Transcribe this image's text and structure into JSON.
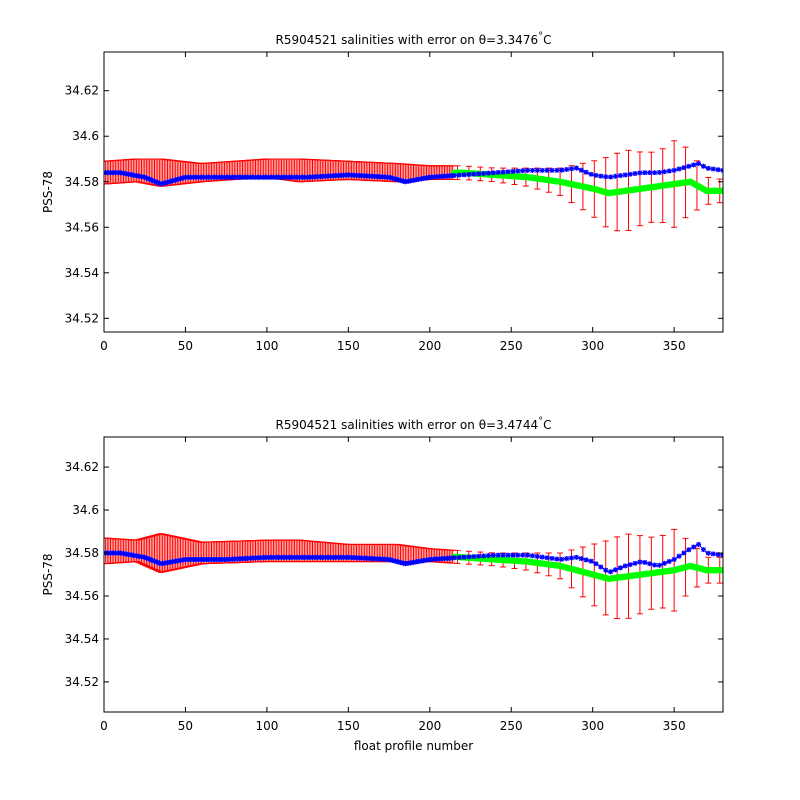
{
  "figure": {
    "background": "#ffffff",
    "colors": {
      "error_bars": "#ff0000",
      "mapped": "#00ff00",
      "float": "#0000ff",
      "axes": "#000000"
    }
  },
  "chart_data": [
    {
      "type": "scatter",
      "title": "R5904521 salinities with error on θ=3.3476°C",
      "title_parts": {
        "prefix": "R5904521 salinities with error on θ=3.3476",
        "degree": "°",
        "unit": "C"
      },
      "xlabel": "",
      "ylabel": "PSS-78",
      "xlim": [
        0,
        380
      ],
      "ylim": [
        34.514,
        34.637
      ],
      "xticks": [
        0,
        50,
        100,
        150,
        200,
        250,
        300,
        350
      ],
      "yticks": [
        34.52,
        34.54,
        34.56,
        34.58,
        34.6,
        34.62
      ],
      "ytick_labels": [
        "34.52",
        "34.54",
        "34.56",
        "34.58",
        "34.6",
        "34.62"
      ],
      "grid": false,
      "series": [
        {
          "role": "mapped salinity with error bars",
          "x": [
            0,
            20,
            35,
            60,
            100,
            120,
            150,
            180,
            200,
            220,
            240,
            260,
            280,
            300,
            310,
            320,
            330,
            340,
            350,
            360,
            370,
            380
          ],
          "y": [
            34.584,
            34.585,
            34.584,
            34.584,
            34.586,
            34.585,
            34.585,
            34.584,
            34.584,
            34.584,
            34.583,
            34.582,
            34.58,
            34.577,
            34.575,
            34.576,
            34.577,
            34.578,
            34.579,
            34.58,
            34.576,
            34.576
          ],
          "err": [
            0.005,
            0.005,
            0.006,
            0.004,
            0.004,
            0.005,
            0.004,
            0.004,
            0.003,
            0.003,
            0.003,
            0.004,
            0.006,
            0.012,
            0.016,
            0.018,
            0.016,
            0.015,
            0.019,
            0.014,
            0.006,
            0.005
          ]
        },
        {
          "role": "float salinity",
          "x": [
            0,
            10,
            25,
            35,
            50,
            75,
            100,
            125,
            150,
            175,
            185,
            200,
            220,
            240,
            260,
            280,
            290,
            300,
            310,
            320,
            330,
            340,
            350,
            360,
            365,
            370,
            380
          ],
          "y": [
            34.584,
            34.584,
            34.582,
            34.579,
            34.582,
            34.582,
            34.582,
            34.582,
            34.583,
            34.582,
            34.58,
            34.582,
            34.583,
            34.584,
            34.585,
            34.585,
            34.586,
            34.583,
            34.582,
            34.583,
            34.584,
            34.584,
            34.585,
            34.587,
            34.588,
            34.586,
            34.585
          ]
        }
      ]
    },
    {
      "type": "scatter",
      "title": "R5904521 salinities with error on θ=3.4744°C",
      "title_parts": {
        "prefix": "R5904521 salinities with error on θ=3.4744",
        "degree": "°",
        "unit": "C"
      },
      "xlabel": "float profile number",
      "ylabel": "PSS-78",
      "xlim": [
        0,
        380
      ],
      "ylim": [
        34.506,
        34.634
      ],
      "xticks": [
        0,
        50,
        100,
        150,
        200,
        250,
        300,
        350
      ],
      "yticks": [
        34.52,
        34.54,
        34.56,
        34.58,
        34.6,
        34.62
      ],
      "ytick_labels": [
        "34.52",
        "34.54",
        "34.56",
        "34.58",
        "34.6",
        "34.62"
      ],
      "grid": false,
      "series": [
        {
          "role": "mapped salinity with error bars",
          "x": [
            0,
            20,
            35,
            60,
            100,
            120,
            150,
            180,
            200,
            220,
            240,
            260,
            280,
            300,
            310,
            320,
            330,
            340,
            350,
            360,
            370,
            380
          ],
          "y": [
            34.581,
            34.581,
            34.58,
            34.58,
            34.581,
            34.581,
            34.58,
            34.58,
            34.579,
            34.578,
            34.577,
            34.576,
            34.574,
            34.57,
            34.568,
            34.569,
            34.57,
            34.571,
            34.572,
            34.574,
            34.572,
            34.572
          ],
          "err": [
            0.006,
            0.005,
            0.009,
            0.005,
            0.005,
            0.005,
            0.004,
            0.004,
            0.003,
            0.003,
            0.003,
            0.004,
            0.006,
            0.014,
            0.018,
            0.02,
            0.018,
            0.016,
            0.019,
            0.011,
            0.006,
            0.006
          ]
        },
        {
          "role": "float salinity",
          "x": [
            0,
            10,
            25,
            35,
            50,
            75,
            100,
            125,
            150,
            175,
            185,
            200,
            220,
            240,
            260,
            280,
            290,
            300,
            310,
            320,
            330,
            340,
            350,
            360,
            365,
            370,
            380
          ],
          "y": [
            34.58,
            34.58,
            34.578,
            34.575,
            34.577,
            34.577,
            34.578,
            34.578,
            34.578,
            34.577,
            34.575,
            34.577,
            34.578,
            34.579,
            34.579,
            34.577,
            34.578,
            34.576,
            34.571,
            34.574,
            34.576,
            34.574,
            34.577,
            34.582,
            34.584,
            34.58,
            34.579
          ]
        }
      ]
    }
  ]
}
